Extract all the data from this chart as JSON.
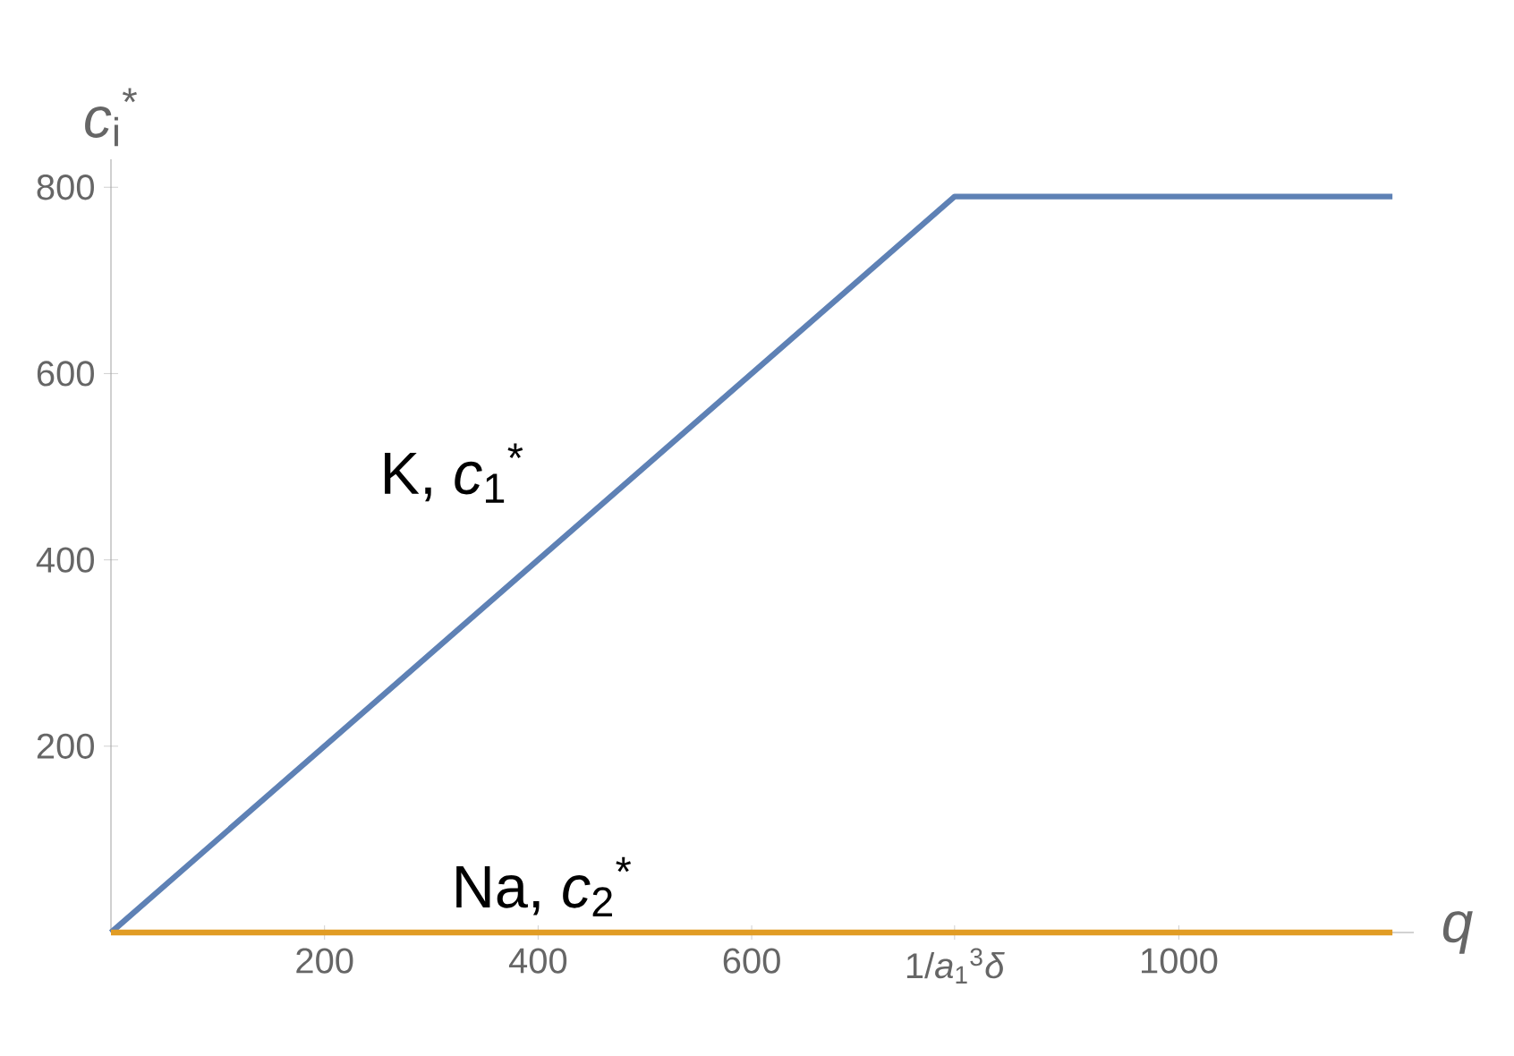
{
  "chart_data": {
    "type": "line",
    "xlabel": "*q*",
    "ylabel": "*c*$_{i}$$^{*}$",
    "xlim": [
      0,
      1220
    ],
    "ylim": [
      0,
      830
    ],
    "xticks": [
      200,
      400,
      600,
      {
        "value": 790,
        "label": "1/*a*$_{1}$$^{3}$*δ*"
      },
      1000
    ],
    "yticks": [
      200,
      400,
      600,
      800
    ],
    "series": [
      {
        "x": [
          0,
          790,
          1200
        ],
        "values": [
          0,
          790,
          790
        ],
        "color": "#5e81b5"
      },
      {
        "x": [
          0,
          1200
        ],
        "values": [
          0,
          0
        ],
        "color": "#e19c24"
      }
    ],
    "annotations": [
      "K, *c*$_{1}$$^{*}$",
      "Na, *c*$_{2}$$^{*}$"
    ],
    "marker": "none",
    "line_style": "solid"
  }
}
